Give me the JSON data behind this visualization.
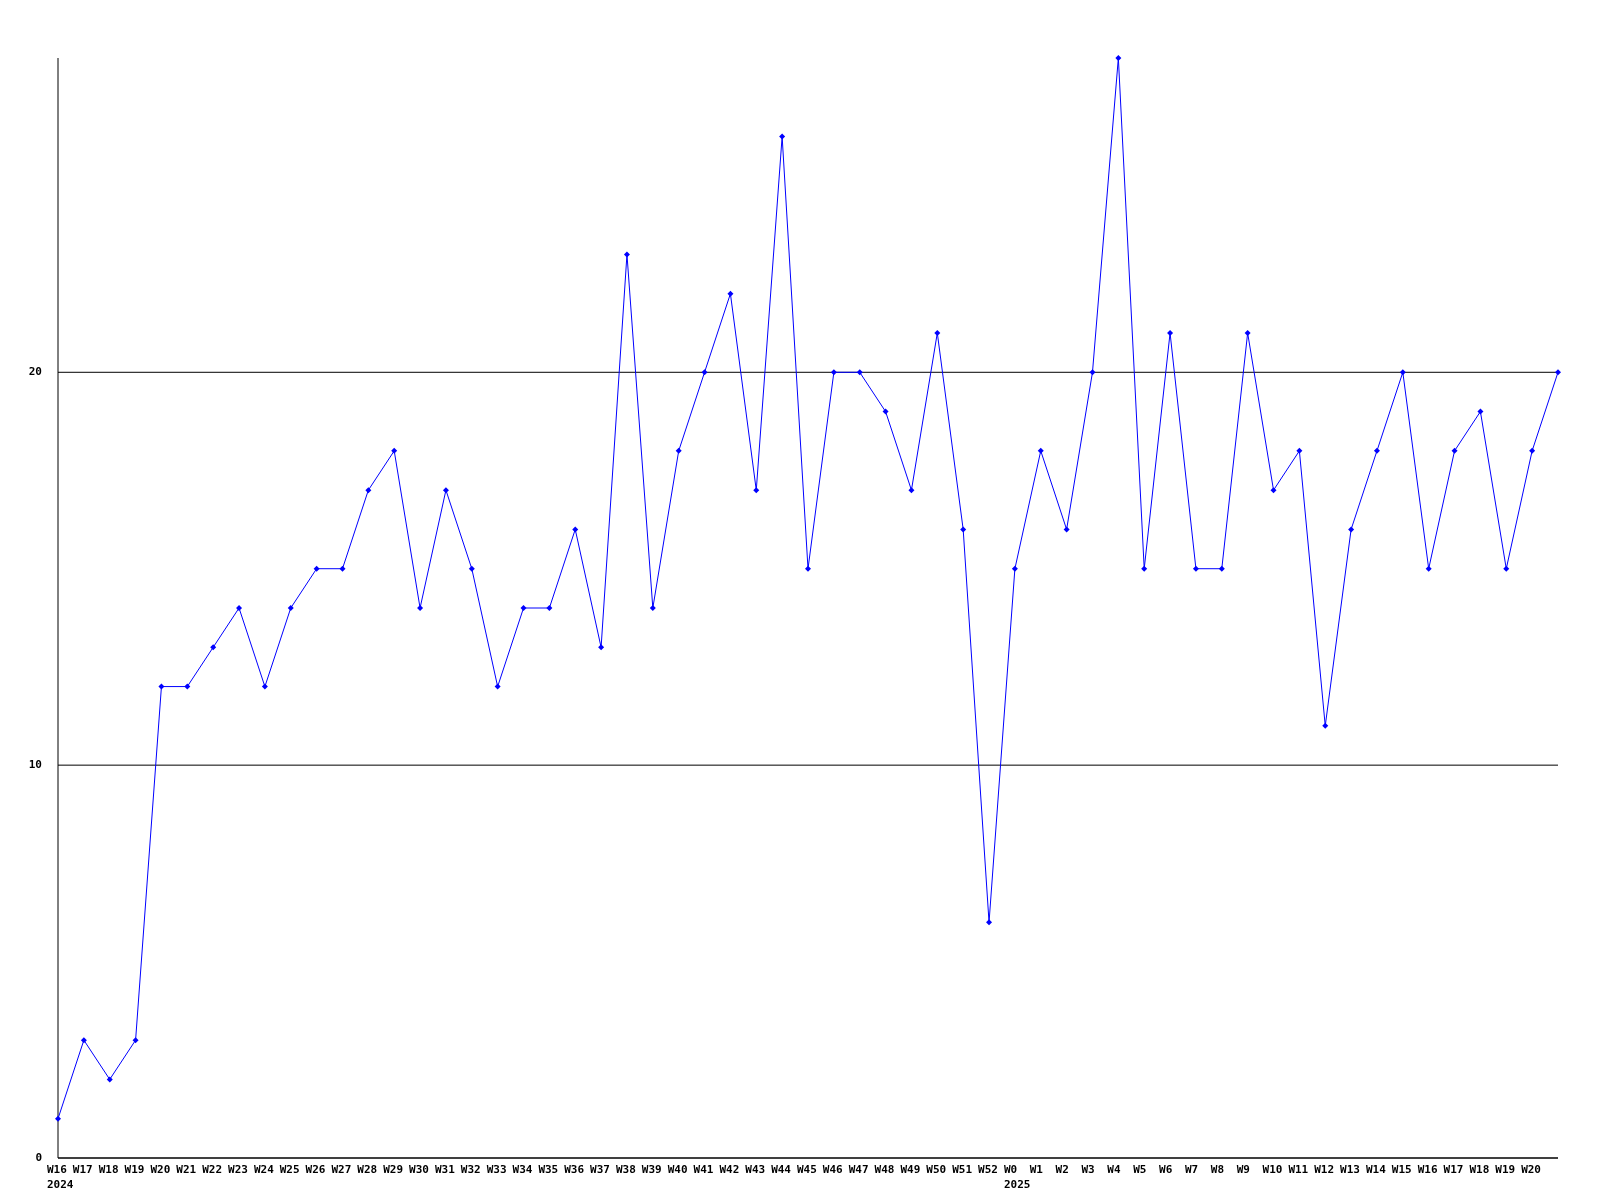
{
  "chart_data": {
    "type": "line",
    "categories": [
      "W16\n2024",
      "W17",
      "W18",
      "W19",
      "W20",
      "W21",
      "W22",
      "W23",
      "W24",
      "W25",
      "W26",
      "W27",
      "W28",
      "W29",
      "W30",
      "W31",
      "W32",
      "W33",
      "W34",
      "W35",
      "W36",
      "W37",
      "W38",
      "W39",
      "W40",
      "W41",
      "W42",
      "W43",
      "W44",
      "W45",
      "W46",
      "W47",
      "W48",
      "W49",
      "W50",
      "W51",
      "W52",
      "W0\n2025",
      "W1",
      "W2",
      "W3",
      "W4",
      "W5",
      "W6",
      "W7",
      "W8",
      "W9",
      "W10",
      "W11",
      "W12",
      "W13",
      "W14",
      "W15",
      "W16",
      "W17",
      "W18",
      "W19",
      "W20",
      null
    ],
    "series": [
      {
        "color": "#0000ff",
        "values": [
          1,
          3,
          2,
          3,
          12,
          12,
          13,
          14,
          12,
          14,
          15,
          15,
          17,
          18,
          14,
          17,
          15,
          12,
          14,
          14,
          16,
          13,
          23,
          14,
          18,
          20,
          22,
          17,
          26,
          15,
          20,
          20,
          19,
          17,
          21,
          16,
          6,
          15,
          18,
          16,
          20,
          28,
          15,
          21,
          15,
          15,
          21,
          17,
          18,
          11,
          16,
          18,
          20,
          15,
          18,
          19,
          15,
          18,
          20
        ]
      }
    ],
    "ylim": [
      0,
      28
    ],
    "yticks": [
      0,
      10,
      20
    ],
    "grid": "y",
    "marker": "diamond",
    "line_style": "solid"
  }
}
